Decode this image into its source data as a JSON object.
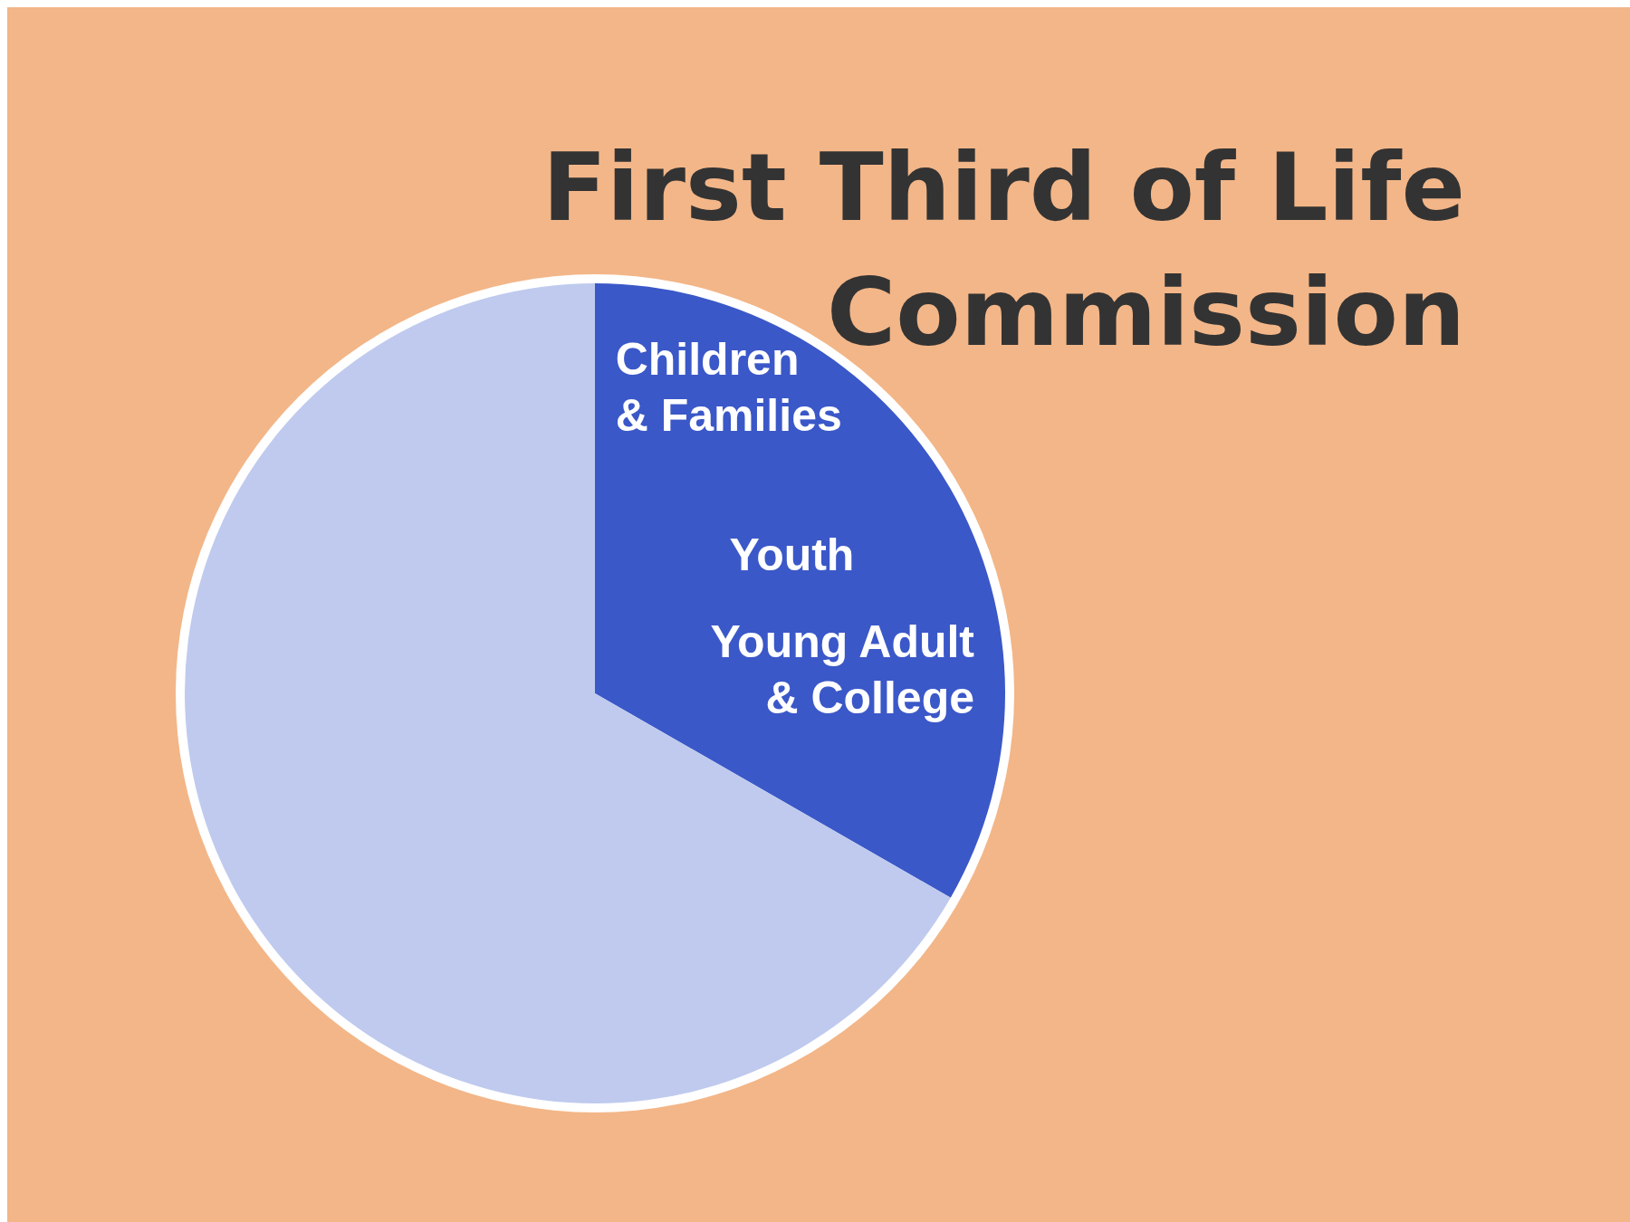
{
  "chart_data": {
    "type": "pie",
    "title": "First Third of Life\nCommission",
    "categories": [
      null,
      null
    ],
    "values": [
      33.3,
      66.7
    ],
    "colors": [
      "#3b58c8",
      "#bfcaee"
    ],
    "legend": false,
    "annotations": [
      "Children\n& Families",
      "Youth",
      "Young Adult\n& College"
    ]
  }
}
